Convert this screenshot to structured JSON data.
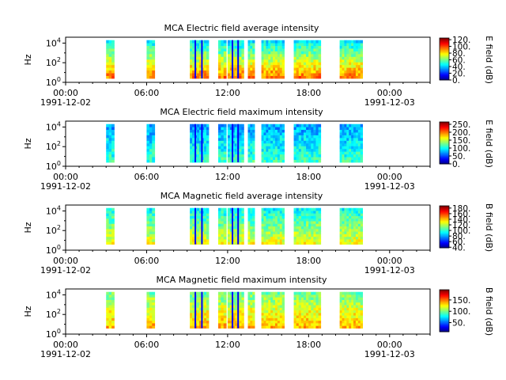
{
  "figure": {
    "time_range": [
      "1991-12-02 00:00",
      "1991-12-03 03:00"
    ],
    "x_tick_labels": [
      "00:00",
      "06:00",
      "12:00",
      "18:00",
      "00:00"
    ],
    "x_tick_hours": [
      0,
      6,
      12,
      18,
      24
    ],
    "x_minor_step_hours": 1,
    "x_date_labels": [
      {
        "hour": 0,
        "text": "1991-12-02"
      },
      {
        "hour": 24,
        "text": "1991-12-03"
      }
    ],
    "ylabel": "Hz",
    "y_range_log10": [
      0,
      4.6
    ],
    "y_tick_exponents": [
      0,
      2,
      4
    ],
    "data_coverage_hours": [
      [
        3.0,
        3.6
      ],
      [
        6.0,
        6.6
      ],
      [
        9.2,
        10.6
      ],
      [
        11.3,
        11.9
      ],
      [
        12.0,
        13.2
      ],
      [
        13.5,
        14.0
      ],
      [
        14.5,
        16.2
      ],
      [
        16.9,
        18.9
      ],
      [
        20.3,
        22.0
      ]
    ],
    "colormap": "jet"
  },
  "chart_data": [
    {
      "type": "heatmap",
      "title": "MCA  Electric field average intensity",
      "ylabel": "Hz",
      "colorbar_label": "E field (dB)",
      "colorbar_range": [
        0,
        125
      ],
      "colorbar_ticks": [
        "0.",
        "20.",
        "40.",
        "60.",
        "80.",
        "100.",
        "120."
      ],
      "colorbar_tick_values": [
        0,
        20,
        40,
        60,
        80,
        100,
        120
      ],
      "freq_log10_range": [
        0.4,
        4.3
      ],
      "intensity_profile": {
        "low_freq_value": 95,
        "high_freq_value": 45
      }
    },
    {
      "type": "heatmap",
      "title": "MCA  Electric field maximum intensity",
      "ylabel": "Hz",
      "colorbar_label": "E field (dB)",
      "colorbar_range": [
        0,
        265
      ],
      "colorbar_ticks": [
        "0.",
        "50.",
        "100.",
        "150.",
        "200.",
        "250."
      ],
      "colorbar_tick_values": [
        0,
        50,
        100,
        150,
        200,
        250
      ],
      "freq_log10_range": [
        0.4,
        4.3
      ],
      "intensity_profile": {
        "low_freq_value": 115,
        "high_freq_value": 75
      }
    },
    {
      "type": "heatmap",
      "title": "MCA  Magnetic field average intensity",
      "ylabel": "Hz",
      "colorbar_label": "B field (dB)",
      "colorbar_range": [
        38,
        188
      ],
      "colorbar_ticks": [
        "40.",
        "60.",
        "80.",
        "100.",
        "120.",
        "140.",
        "160.",
        "180."
      ],
      "colorbar_tick_values": [
        40,
        60,
        80,
        100,
        120,
        140,
        160,
        180
      ],
      "freq_log10_range": [
        0.6,
        4.3
      ],
      "intensity_profile": {
        "low_freq_value": 130,
        "high_freq_value": 95
      }
    },
    {
      "type": "heatmap",
      "title": "MCA  Magnetic field maximum intensity",
      "ylabel": "Hz",
      "colorbar_label": "B field (dB)",
      "colorbar_range": [
        10,
        195
      ],
      "colorbar_ticks": [
        "50.",
        "100.",
        "150."
      ],
      "colorbar_tick_values": [
        50,
        100,
        150
      ],
      "freq_log10_range": [
        0.6,
        4.3
      ],
      "intensity_profile": {
        "low_freq_value": 140,
        "high_freq_value": 100
      }
    }
  ]
}
